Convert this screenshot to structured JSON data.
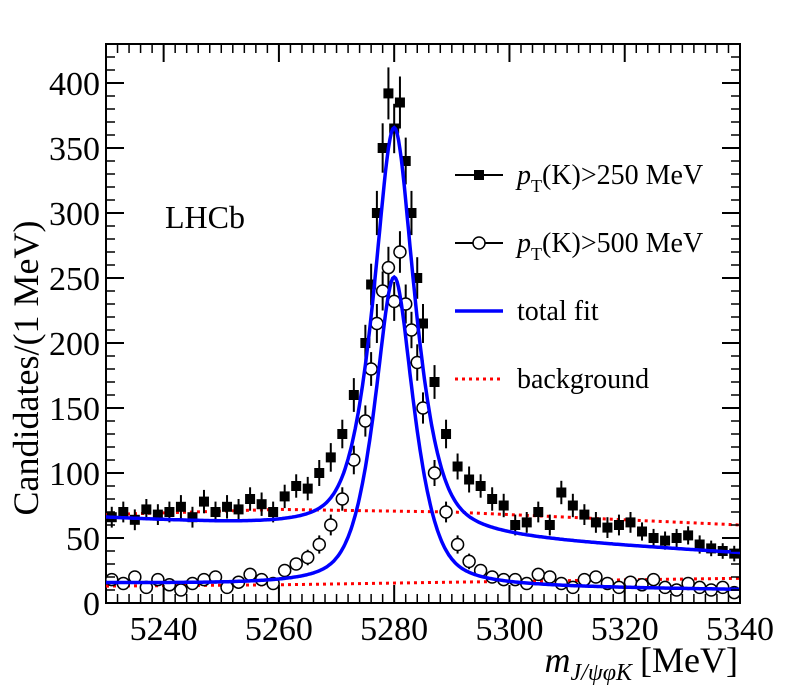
{
  "chart_data": {
    "type": "scatter",
    "title": "",
    "annotation": "LHCb",
    "xlabel": {
      "var": "m",
      "sub": "J/ψφK",
      "unit": "[MeV]"
    },
    "ylabel": "Candidates/(1 MeV)",
    "xlim": [
      5230,
      5340
    ],
    "ylim": [
      0,
      430
    ],
    "x_ticks": [
      5240,
      5260,
      5280,
      5300,
      5320,
      5340
    ],
    "y_ticks": [
      0,
      50,
      100,
      150,
      200,
      250,
      300,
      350,
      400
    ],
    "legend_position": "top-right",
    "legend": [
      {
        "key": "pt250",
        "text_pre": "p",
        "text_sub": "T",
        "text_post": "(K)>250 MeV",
        "style": "filled-square"
      },
      {
        "key": "pt500",
        "text_pre": "p",
        "text_sub": "T",
        "text_post": "(K)>500 MeV",
        "style": "open-circle"
      },
      {
        "key": "fit",
        "text": "total fit",
        "style": "solid-blue"
      },
      {
        "key": "bkg",
        "text": "background",
        "style": "dotted-red"
      }
    ],
    "series": [
      {
        "name": "pT(K)>250 MeV",
        "marker": "filled-square",
        "x": [
          5231,
          5233,
          5235,
          5237,
          5239,
          5241,
          5243,
          5245,
          5247,
          5249,
          5251,
          5253,
          5255,
          5257,
          5259,
          5261,
          5263,
          5265,
          5267,
          5269,
          5271,
          5273,
          5275,
          5276,
          5277,
          5278,
          5279,
          5280,
          5281,
          5282,
          5283,
          5284,
          5285,
          5287,
          5289,
          5291,
          5293,
          5295,
          5297,
          5299,
          5301,
          5303,
          5305,
          5307,
          5309,
          5311,
          5313,
          5315,
          5317,
          5319,
          5321,
          5323,
          5325,
          5327,
          5329,
          5331,
          5333,
          5335,
          5337,
          5339
        ],
        "y": [
          66,
          70,
          64,
          72,
          68,
          70,
          74,
          66,
          78,
          70,
          74,
          72,
          80,
          76,
          70,
          82,
          90,
          88,
          100,
          112,
          130,
          160,
          200,
          245,
          300,
          350,
          392,
          365,
          385,
          340,
          300,
          250,
          215,
          170,
          130,
          105,
          95,
          90,
          80,
          75,
          60,
          62,
          70,
          60,
          85,
          75,
          68,
          62,
          58,
          60,
          62,
          55,
          50,
          48,
          50,
          52,
          45,
          42,
          40,
          38
        ],
        "yerr": [
          8,
          8,
          8,
          8,
          8,
          8,
          9,
          8,
          9,
          8,
          9,
          8,
          9,
          9,
          8,
          9,
          9,
          9,
          10,
          11,
          11,
          13,
          14,
          16,
          17,
          19,
          20,
          19,
          20,
          18,
          17,
          16,
          15,
          13,
          11,
          10,
          10,
          9,
          9,
          9,
          8,
          8,
          8,
          8,
          9,
          9,
          8,
          8,
          8,
          8,
          8,
          7,
          7,
          7,
          7,
          7,
          7,
          6,
          6,
          6
        ]
      },
      {
        "name": "pT(K)>500 MeV",
        "marker": "open-circle",
        "x": [
          5231,
          5233,
          5235,
          5237,
          5239,
          5241,
          5243,
          5245,
          5247,
          5249,
          5251,
          5253,
          5255,
          5257,
          5259,
          5261,
          5263,
          5265,
          5267,
          5269,
          5271,
          5273,
          5275,
          5276,
          5277,
          5278,
          5279,
          5280,
          5281,
          5282,
          5283,
          5284,
          5285,
          5287,
          5289,
          5291,
          5293,
          5295,
          5297,
          5299,
          5301,
          5303,
          5305,
          5307,
          5309,
          5311,
          5313,
          5315,
          5317,
          5319,
          5321,
          5323,
          5325,
          5327,
          5329,
          5331,
          5333,
          5335,
          5337,
          5339
        ],
        "y": [
          18,
          15,
          20,
          12,
          18,
          14,
          10,
          15,
          18,
          20,
          12,
          16,
          22,
          18,
          15,
          25,
          30,
          35,
          45,
          60,
          80,
          110,
          140,
          180,
          215,
          240,
          258,
          232,
          270,
          230,
          210,
          185,
          150,
          100,
          70,
          45,
          32,
          25,
          20,
          18,
          18,
          15,
          22,
          20,
          15,
          12,
          18,
          20,
          15,
          12,
          16,
          14,
          18,
          12,
          10,
          15,
          12,
          10,
          12,
          8
        ],
        "yerr": [
          4,
          4,
          4,
          3,
          4,
          4,
          3,
          4,
          4,
          4,
          3,
          4,
          5,
          4,
          4,
          5,
          5,
          6,
          7,
          8,
          9,
          11,
          12,
          13,
          15,
          15,
          16,
          15,
          16,
          15,
          14,
          14,
          12,
          10,
          8,
          7,
          6,
          5,
          4,
          4,
          4,
          4,
          5,
          4,
          4,
          3,
          4,
          4,
          4,
          3,
          4,
          4,
          4,
          3,
          3,
          4,
          3,
          3,
          3,
          3
        ]
      }
    ],
    "fit_curves": [
      {
        "name": "total fit",
        "peak": 5280,
        "amp": 313,
        "width": 3.8,
        "bkg_start": 65,
        "bkg_end": 38
      },
      {
        "name": "total fit",
        "peak": 5280,
        "amp": 238,
        "width": 3.6,
        "bkg_start": 15,
        "bkg_end": 10
      }
    ],
    "background_curves": [
      {
        "name": "background",
        "points": [
          [
            5230,
            68
          ],
          [
            5260,
            72
          ],
          [
            5290,
            70
          ],
          [
            5340,
            60
          ]
        ]
      },
      {
        "name": "background",
        "points": [
          [
            5230,
            13
          ],
          [
            5260,
            14
          ],
          [
            5290,
            16
          ],
          [
            5340,
            19
          ]
        ]
      }
    ],
    "colors": {
      "fit": "#0000ff",
      "background": "#ff0000",
      "markers": "#000000"
    }
  }
}
